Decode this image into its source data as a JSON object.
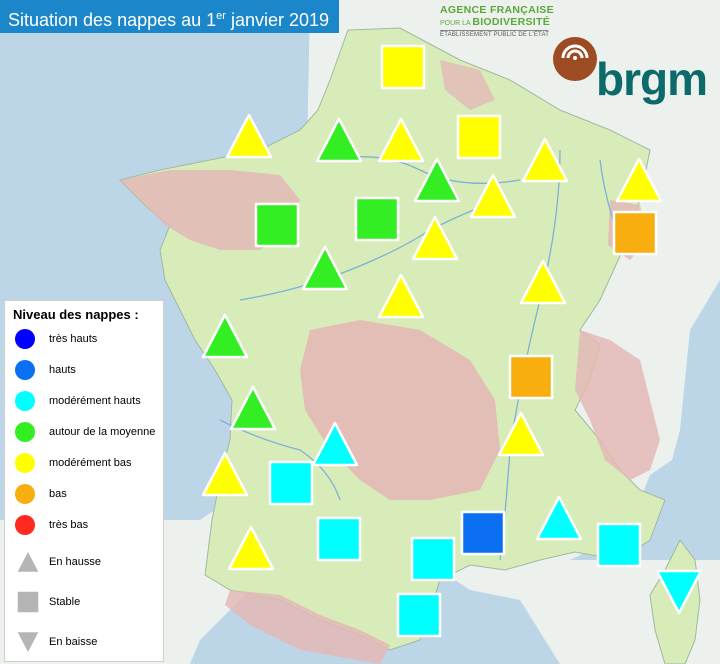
{
  "title": {
    "text": "Situation des nappes au 1",
    "sup": "er",
    "rest": " janvier 2019"
  },
  "agency": {
    "line1": "AGENCE FRANÇAISE",
    "line2_prefix": "POUR LA",
    "line2": "BIODIVERSITÉ",
    "line3": "ÉTABLISSEMENT PUBLIC DE L'ÉTAT"
  },
  "brgm_logo": "brgm",
  "legend": {
    "title": "Niveau des nappes :",
    "levels": [
      {
        "label": "très hauts",
        "color": "#0000ff"
      },
      {
        "label": "hauts",
        "color": "#0b6ff2"
      },
      {
        "label": "modérément hauts",
        "color": "#00ffff"
      },
      {
        "label": "autour de la moyenne",
        "color": "#33ee22"
      },
      {
        "label": "modérément bas",
        "color": "#ffff00"
      },
      {
        "label": "bas",
        "color": "#f9ae10"
      },
      {
        "label": "très bas",
        "color": "#ff2a1f"
      }
    ],
    "trends": [
      {
        "label": "En hausse",
        "shape": "up"
      },
      {
        "label": "Stable",
        "shape": "square"
      },
      {
        "label": "En baisse",
        "shape": "down"
      }
    ],
    "trend_color": "#b5b5b5"
  },
  "colors": {
    "sea": "#bcd6e8",
    "land": "#d7ecb8",
    "clay": "#e3b9b6",
    "rivers": "#7fb0d8",
    "marker_border": "#ffffff"
  },
  "markers": [
    {
      "level": "modérément bas",
      "trend": "stable"
    },
    {
      "level": "modérément bas",
      "trend": "hausse"
    },
    {
      "level": "autour de la moyenne",
      "trend": "hausse"
    },
    {
      "level": "modérément bas",
      "trend": "hausse"
    },
    {
      "level": "modérément bas",
      "trend": "stable"
    },
    {
      "level": "modérément bas",
      "trend": "hausse"
    },
    {
      "level": "autour de la moyenne",
      "trend": "hausse"
    },
    {
      "level": "modérément bas",
      "trend": "hausse"
    },
    {
      "level": "modérément bas",
      "trend": "hausse"
    },
    {
      "level": "autour de la moyenne",
      "trend": "stable"
    },
    {
      "level": "autour de la moyenne",
      "trend": "stable"
    },
    {
      "level": "modérément bas",
      "trend": "hausse"
    },
    {
      "level": "bas",
      "trend": "stable"
    },
    {
      "level": "autour de la moyenne",
      "trend": "hausse"
    },
    {
      "level": "modérément bas",
      "trend": "hausse"
    },
    {
      "level": "modérément bas",
      "trend": "hausse"
    },
    {
      "level": "autour de la moyenne",
      "trend": "hausse"
    },
    {
      "level": "bas",
      "trend": "stable"
    },
    {
      "level": "autour de la moyenne",
      "trend": "hausse"
    },
    {
      "level": "modérément hauts",
      "trend": "hausse"
    },
    {
      "level": "modérément bas",
      "trend": "hausse"
    },
    {
      "level": "modérément hauts",
      "trend": "stable"
    },
    {
      "level": "modérément bas",
      "trend": "hausse"
    },
    {
      "level": "modérément hauts",
      "trend": "stable"
    },
    {
      "level": "hauts",
      "trend": "stable"
    },
    {
      "level": "modérément hauts",
      "trend": "hausse"
    },
    {
      "level": "modérément hauts",
      "trend": "stable"
    },
    {
      "level": "modérément bas",
      "trend": "hausse"
    },
    {
      "level": "modérément hauts",
      "trend": "stable"
    },
    {
      "level": "modérément hauts",
      "trend": "baisse"
    },
    {
      "level": "modérément hauts",
      "trend": "stable"
    }
  ]
}
